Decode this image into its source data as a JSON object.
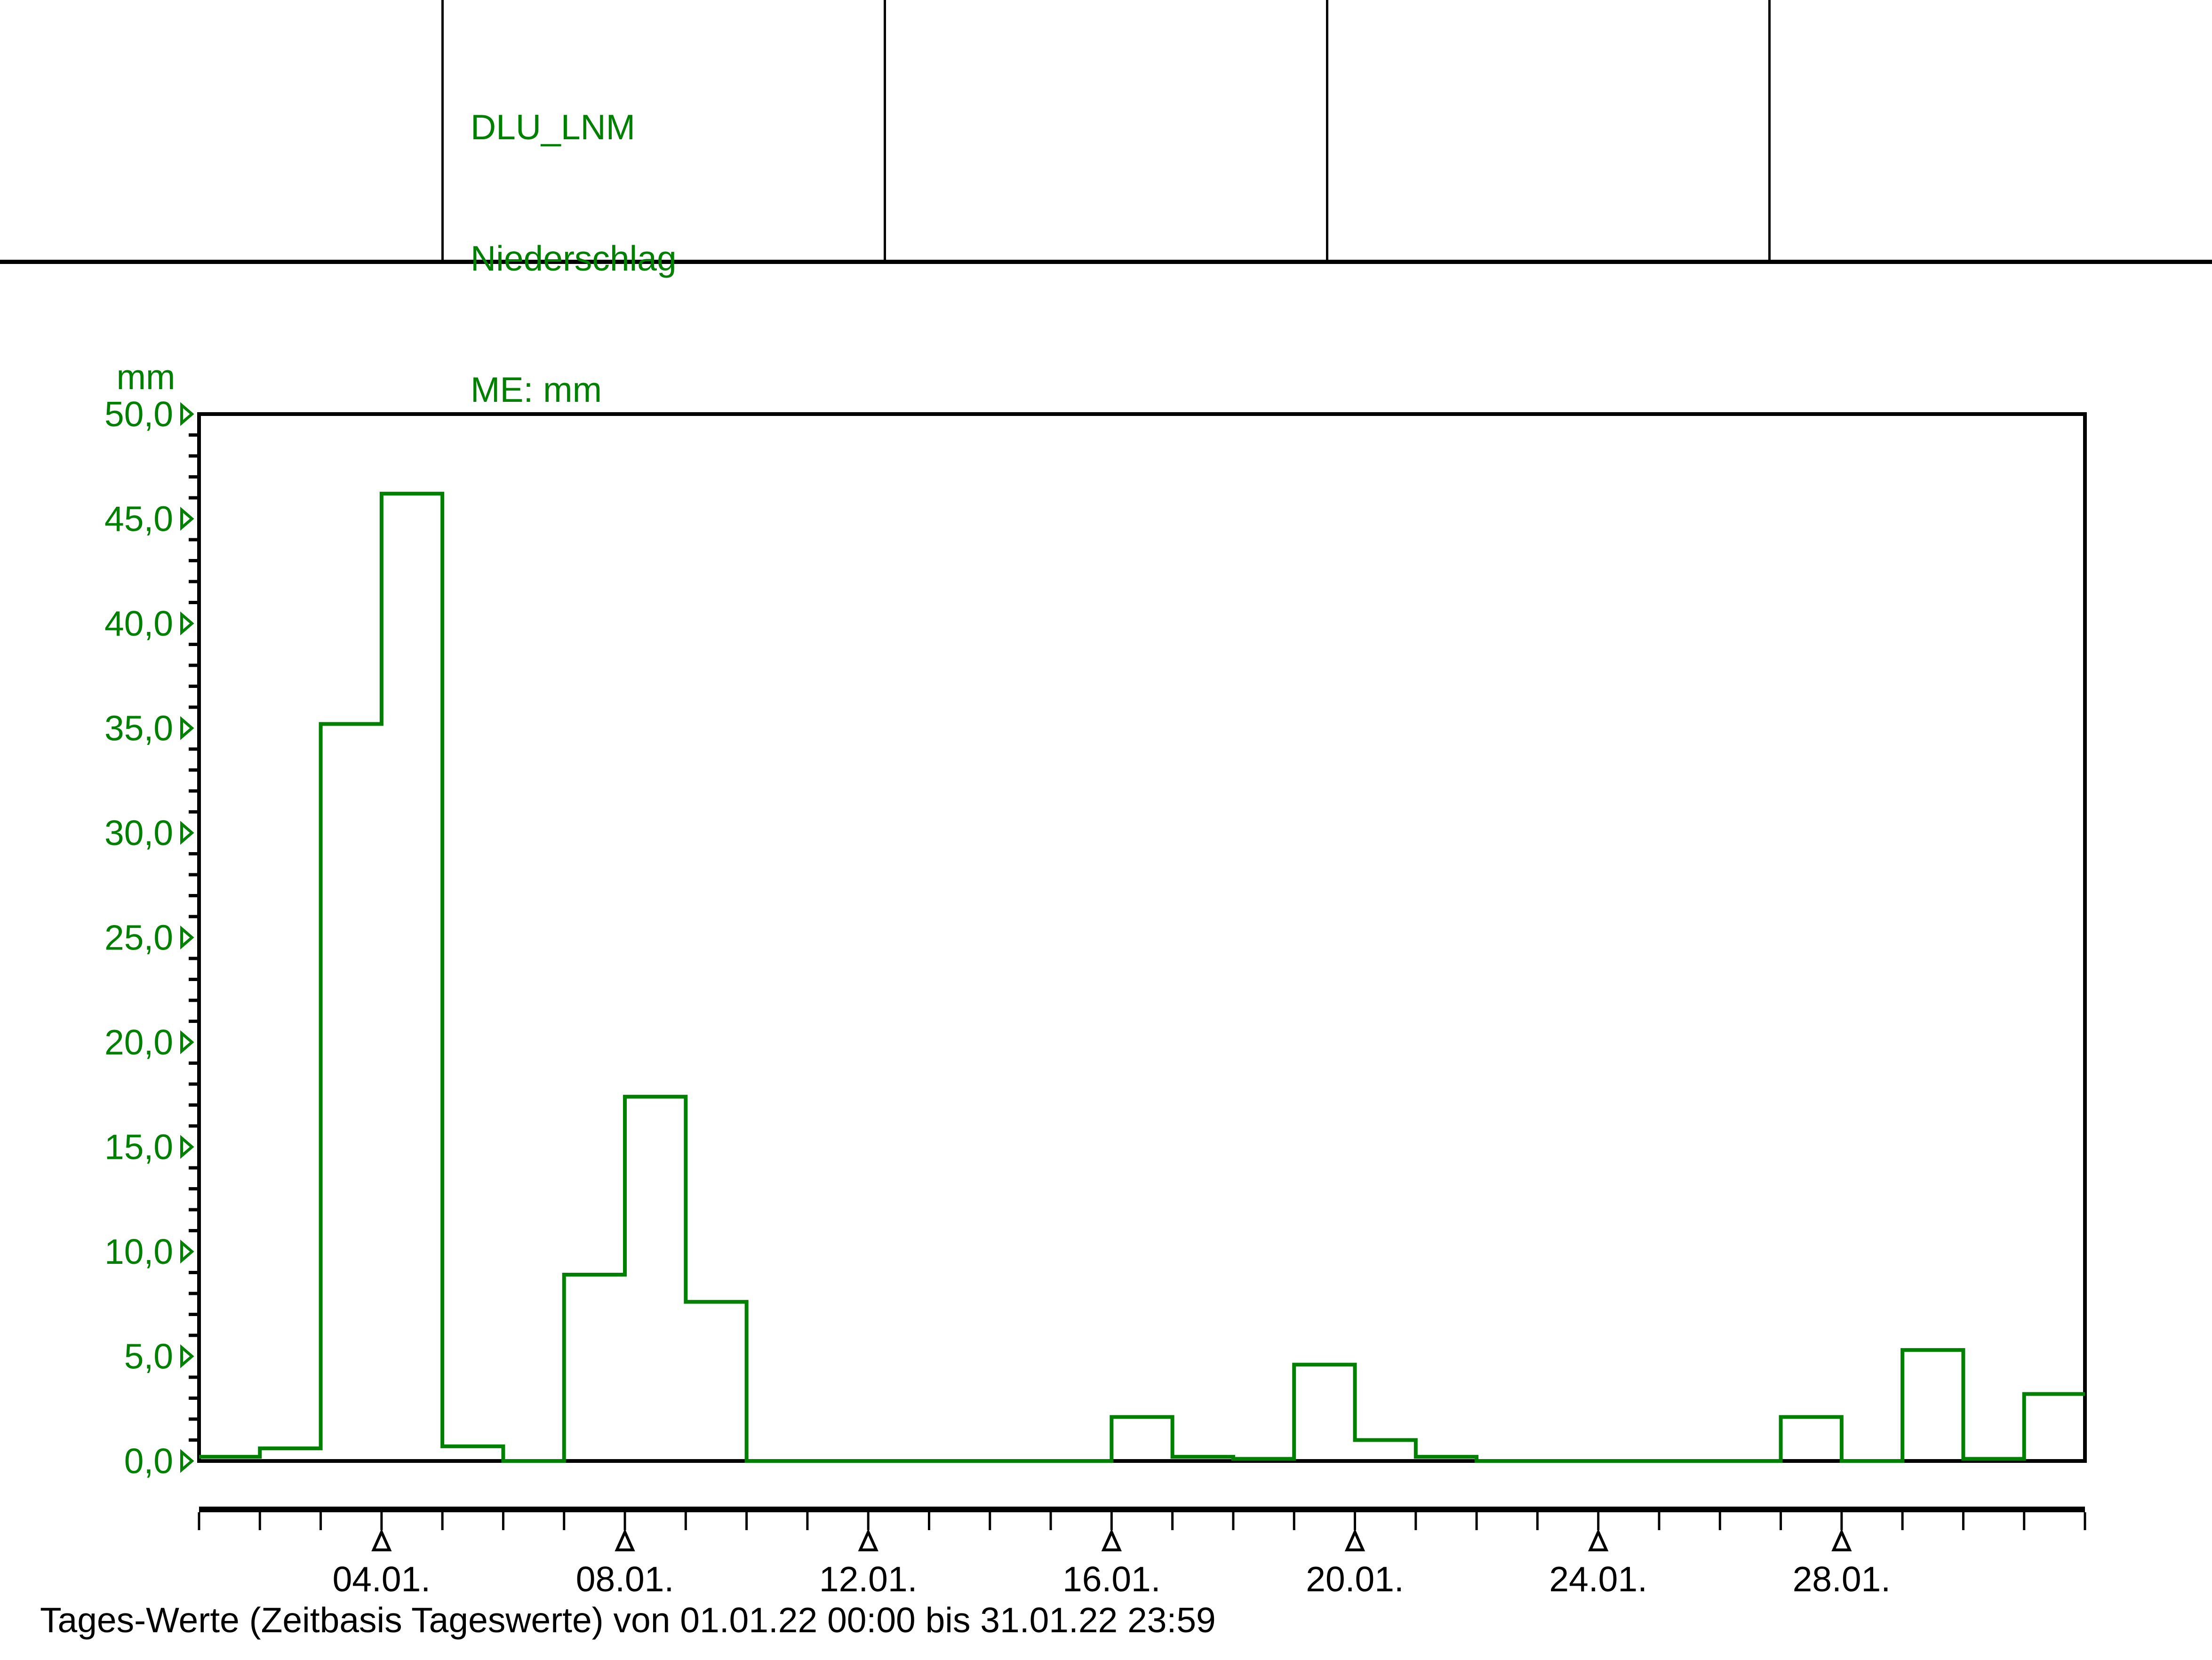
{
  "header": {
    "station_id": "DLU_LNM",
    "parameter": "Niederschlag",
    "unit_label": "ME: mm"
  },
  "chart_data": {
    "type": "bar",
    "subtype": "step-histogram-outline",
    "title": "",
    "xlabel": "",
    "ylabel": "mm",
    "ylim": [
      0,
      50
    ],
    "y_major_step": 5,
    "y_minor_step": 1,
    "grid": false,
    "legend": false,
    "series_color": "#008000",
    "axis_color": "#000000",
    "y_tick_labels": [
      "0,0",
      "5,0",
      "10,0",
      "15,0",
      "20,0",
      "25,0",
      "30,0",
      "35,0",
      "40,0",
      "45,0",
      "50,0"
    ],
    "x_tick_labels": [
      "04.01.",
      "08.01.",
      "12.01.",
      "16.01.",
      "20.01.",
      "24.01.",
      "28.01."
    ],
    "x_labeled_days": [
      4,
      8,
      12,
      16,
      20,
      24,
      28
    ],
    "categories": [
      "01.01.22",
      "02.01.22",
      "03.01.22",
      "04.01.22",
      "05.01.22",
      "06.01.22",
      "07.01.22",
      "08.01.22",
      "09.01.22",
      "10.01.22",
      "11.01.22",
      "12.01.22",
      "13.01.22",
      "14.01.22",
      "15.01.22",
      "16.01.22",
      "17.01.22",
      "18.01.22",
      "19.01.22",
      "20.01.22",
      "21.01.22",
      "22.01.22",
      "23.01.22",
      "24.01.22",
      "25.01.22",
      "26.01.22",
      "27.01.22",
      "28.01.22",
      "29.01.22",
      "30.01.22",
      "31.01.22"
    ],
    "values": [
      0.2,
      0.6,
      35.2,
      46.2,
      0.7,
      0,
      8.9,
      17.4,
      7.6,
      0,
      0,
      0,
      0,
      0,
      0,
      2.1,
      0.2,
      0.1,
      4.6,
      1.0,
      0.2,
      0,
      0,
      0,
      0,
      0,
      2.1,
      0,
      5.3,
      0.1,
      3.2
    ]
  },
  "footer": {
    "caption": "Tages-Werte (Zeitbasis Tageswerte) von 01.01.22 00:00 bis 31.01.22 23:59"
  }
}
